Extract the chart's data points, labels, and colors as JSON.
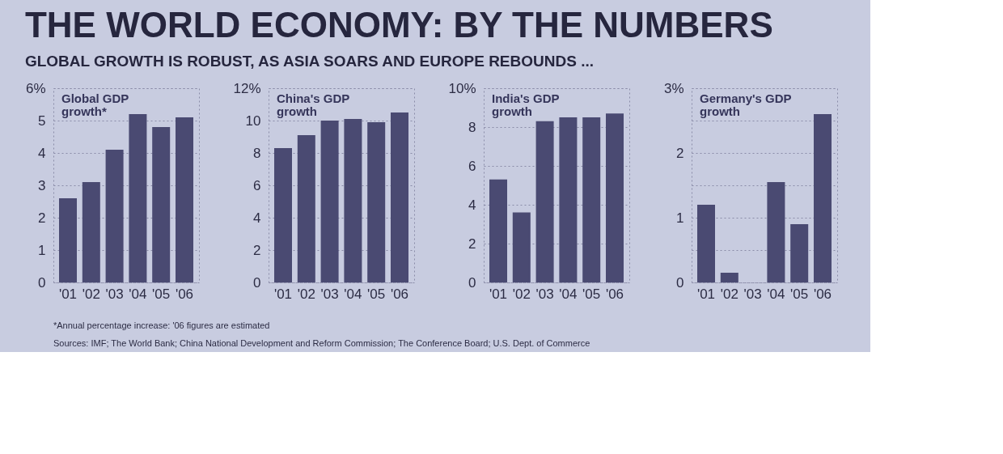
{
  "chart_data": [
    {
      "type": "bar",
      "title": "THE WORLD ECONOMY: BY THE NUMBERS",
      "subtitle": "GLOBAL GROWTH IS ROBUST, AS ASIA SOARS AND EUROPE REBOUNDS ...",
      "categories": [
        "'01",
        "'02",
        "'03",
        "'04",
        "'05",
        "'06"
      ],
      "values": [
        2.6,
        3.1,
        4.1,
        5.2,
        4.8,
        5.1
      ],
      "color": "#4a4a72",
      "ylim": [
        0,
        6
      ],
      "yticks": [
        0,
        1,
        2,
        3,
        4,
        5,
        {
          "value": 6,
          "label": "6%"
        }
      ],
      "grid": true,
      "annotations": [
        "Global GDP growth*",
        "*Annual percentage increase: '06 figures are estimated",
        "Sources: IMF; The World Bank; China National Development and Reform Commission; The Conference Board; U.S. Dept. of Commerce"
      ]
    },
    {
      "type": "bar",
      "categories": [
        "'01",
        "'02",
        "'03",
        "'04",
        "'05",
        "'06"
      ],
      "values": [
        8.3,
        9.1,
        10.0,
        10.1,
        9.9,
        10.5
      ],
      "color": "#4a4a72",
      "ylim": [
        0,
        12
      ],
      "yticks": [
        0,
        2,
        4,
        6,
        8,
        10,
        {
          "value": 12,
          "label": "12%"
        }
      ],
      "grid": true,
      "annotations": [
        "China's GDP growth"
      ]
    },
    {
      "type": "bar",
      "categories": [
        "'01",
        "'02",
        "'03",
        "'04",
        "'05",
        "'06"
      ],
      "values": [
        5.3,
        3.6,
        8.3,
        8.5,
        8.5,
        8.7
      ],
      "color": "#4a4a72",
      "ylim": [
        0,
        10
      ],
      "yticks": [
        0,
        2,
        4,
        6,
        8,
        {
          "value": 10,
          "label": "10%"
        }
      ],
      "grid": true,
      "annotations": [
        "India's GDP growth"
      ]
    },
    {
      "type": "bar",
      "categories": [
        "'01",
        "'02",
        "'03",
        "'04",
        "'05",
        "'06"
      ],
      "values": [
        1.2,
        0.15,
        0,
        1.55,
        0.9,
        2.6
      ],
      "color": "#4a4a72",
      "ylim": [
        0,
        3
      ],
      "yticks": [
        0,
        {
          "value": 0.5,
          "label": null
        },
        1,
        {
          "value": 1.5,
          "label": null
        },
        2,
        {
          "value": 2.5,
          "label": null
        },
        {
          "value": 3,
          "label": "3%"
        }
      ],
      "grid": true,
      "annotations": [
        "Germany's GDP growth"
      ]
    }
  ]
}
